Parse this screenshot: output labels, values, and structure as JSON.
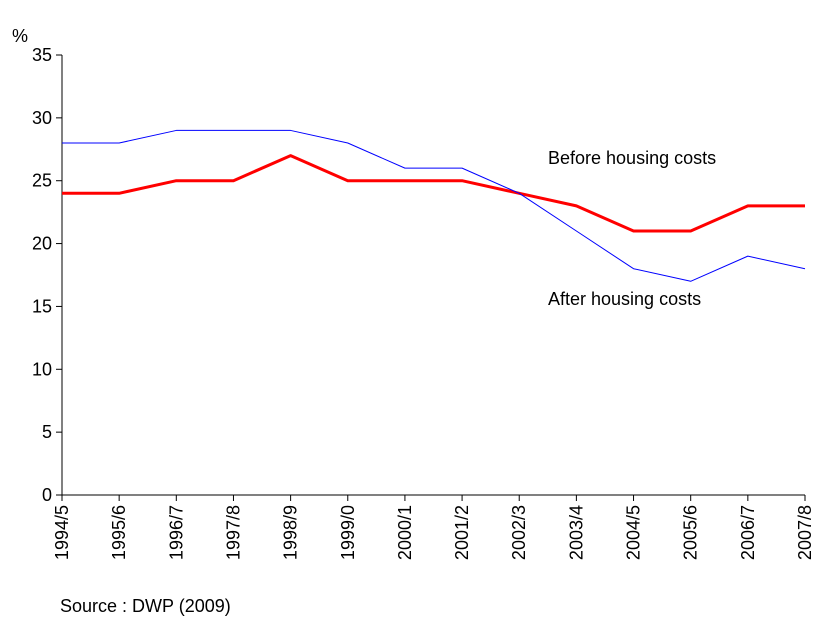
{
  "chart_data": {
    "type": "line",
    "y_label": "%",
    "source": "Source : DWP (2009)",
    "categories": [
      "1994/5",
      "1995/6",
      "1996/7",
      "1997/8",
      "1998/9",
      "1999/0",
      "2000/1",
      "2001/2",
      "2002/3",
      "2003/4",
      "2004/5",
      "2005/6",
      "2006/7",
      "2007/8"
    ],
    "series": [
      {
        "name": "Before housing costs",
        "color": "#ff0000",
        "width": 3,
        "values": [
          24,
          24,
          25,
          25,
          27,
          25,
          25,
          25,
          24,
          23,
          21,
          21,
          23,
          23
        ]
      },
      {
        "name": "After housing costs",
        "color": "#0000ff",
        "width": 1,
        "values": [
          28,
          28,
          29,
          29,
          29,
          28,
          26,
          26,
          24,
          21,
          18,
          17,
          19,
          18
        ]
      }
    ],
    "ylim": [
      0,
      35
    ],
    "yticks": [
      0,
      5,
      10,
      15,
      20,
      25,
      30,
      35
    ]
  }
}
